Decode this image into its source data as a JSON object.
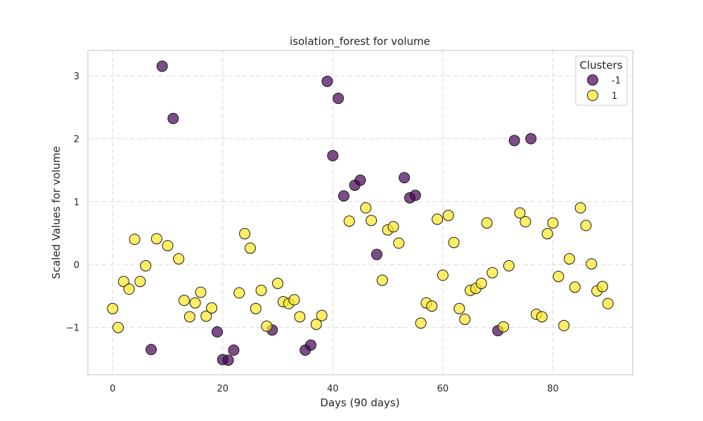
{
  "chart_data": {
    "type": "scatter",
    "title": "isolation_forest for volume",
    "xlabel": "Days (90 days)",
    "ylabel": "Scaled Values for volume",
    "xlim": [
      -4.5,
      94.5
    ],
    "ylim": [
      -1.75,
      3.4
    ],
    "xticks": [
      0,
      20,
      40,
      60,
      80
    ],
    "yticks": [
      -1,
      0,
      1,
      2,
      3
    ],
    "ytick_labels": [
      "−1",
      "0",
      "1",
      "2",
      "3"
    ],
    "grid": true,
    "legend": {
      "title": "Clusters",
      "placement": "top-right"
    },
    "series": [
      {
        "name": "-1",
        "color": "#440154",
        "x": [
          7,
          9,
          11,
          19,
          20,
          21,
          22,
          29,
          35,
          36,
          39,
          40,
          41,
          42,
          44,
          45,
          48,
          53,
          54,
          55,
          70,
          73,
          76
        ],
        "y": [
          -1.35,
          3.15,
          2.32,
          -1.07,
          -1.51,
          -1.52,
          -1.36,
          -1.04,
          -1.36,
          -1.28,
          2.91,
          1.73,
          2.64,
          1.09,
          1.26,
          1.34,
          0.16,
          1.38,
          1.06,
          1.1,
          -1.05,
          1.97,
          2.0
        ]
      },
      {
        "name": "1",
        "color": "#fde725",
        "x": [
          0,
          1,
          2,
          3,
          4,
          5,
          6,
          8,
          10,
          12,
          13,
          14,
          15,
          16,
          17,
          18,
          23,
          24,
          25,
          26,
          27,
          28,
          30,
          31,
          32,
          33,
          34,
          37,
          38,
          43,
          46,
          47,
          49,
          50,
          51,
          52,
          56,
          57,
          58,
          59,
          60,
          61,
          62,
          63,
          64,
          65,
          66,
          67,
          68,
          69,
          71,
          72,
          74,
          75,
          77,
          78,
          79,
          80,
          81,
          82,
          83,
          84,
          85,
          86,
          87,
          88,
          89,
          90
        ],
        "y": [
          -0.7,
          -1.0,
          -0.27,
          -0.39,
          0.4,
          -0.27,
          -0.02,
          0.41,
          0.3,
          0.09,
          -0.57,
          -0.83,
          -0.61,
          -0.44,
          -0.82,
          -0.69,
          -0.45,
          0.49,
          0.26,
          -0.7,
          -0.41,
          -0.98,
          -0.3,
          -0.59,
          -0.62,
          -0.56,
          -0.83,
          -0.95,
          -0.81,
          0.69,
          0.9,
          0.7,
          -0.25,
          0.55,
          0.6,
          0.34,
          -0.93,
          -0.61,
          -0.66,
          0.72,
          -0.17,
          0.78,
          0.35,
          -0.7,
          -0.87,
          -0.41,
          -0.38,
          -0.3,
          0.66,
          -0.13,
          -0.99,
          -0.02,
          0.82,
          0.68,
          -0.79,
          -0.83,
          0.49,
          0.66,
          -0.19,
          -0.97,
          0.09,
          -0.36,
          0.9,
          0.62,
          0.01,
          -0.42,
          -0.35,
          -0.62
        ]
      }
    ]
  }
}
